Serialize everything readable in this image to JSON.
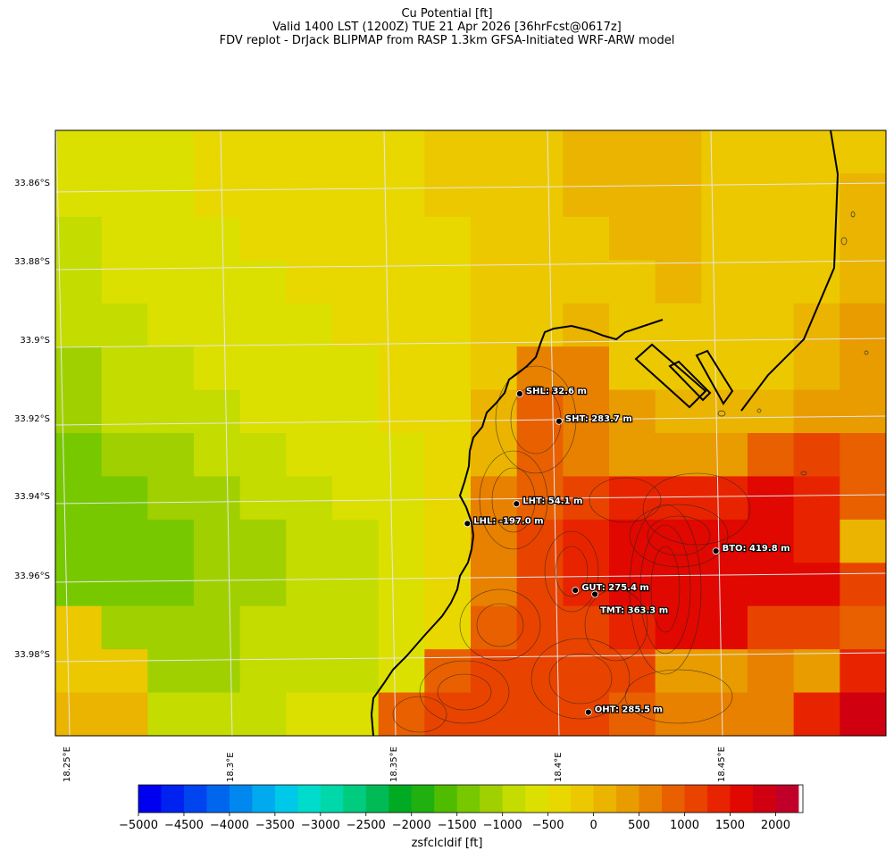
{
  "title": {
    "line1": "Cu Potential [ft]",
    "line2": "Valid 1400 LST (1200Z) TUE 21 Apr 2026 [36hrFcst@0617z]",
    "line3": "FDV replot - DrJack BLIPMAP from RASP 1.3km GFSA-Initiated WRF-ARW model"
  },
  "map": {
    "lat_labels": [
      "33.86°S",
      "33.88°S",
      "33.9°S",
      "33.92°S",
      "33.94°S",
      "33.96°S",
      "33.98°S"
    ],
    "lon_labels": [
      "18.25°E",
      "18.3°E",
      "18.35°E",
      "18.4°E",
      "18.45°E"
    ],
    "lon_range": [
      18.247,
      18.501
    ],
    "lat_range": [
      -33.995,
      -33.841
    ]
  },
  "stations": [
    {
      "code": "SHL",
      "label": "SHL: 32.6 m",
      "lon": 18.389,
      "lat": -33.908
    },
    {
      "code": "SHT",
      "label": "SHT: 283.7 m",
      "lon": 18.401,
      "lat": -33.915
    },
    {
      "code": "LHT",
      "label": "LHT: 54.1 m",
      "lon": 18.388,
      "lat": -33.936
    },
    {
      "code": "LHL",
      "label": "LHL: -197.0 m",
      "lon": 18.373,
      "lat": -33.941
    },
    {
      "code": "BTO",
      "label": "BTO: 419.8 m",
      "lon": 18.449,
      "lat": -33.948
    },
    {
      "code": "GUT",
      "label": "GUT: 275.4 m",
      "lon": 18.406,
      "lat": -33.958
    },
    {
      "code": "TMT",
      "label": "TMT: 363.3 m",
      "lon": 18.412,
      "lat": -33.959
    },
    {
      "code": "OHT",
      "label": "OHT: 285.5 m",
      "lon": 18.41,
      "lat": -33.989
    }
  ],
  "colorbar": {
    "label": "zsfclcldif [ft]",
    "min": -5000,
    "max": 2300,
    "step": 250,
    "tick_labels": [
      "−5000",
      "−4500",
      "−4000",
      "−3500",
      "−3000",
      "−2500",
      "−2000",
      "−1500",
      "−1000",
      "−500",
      "0",
      "500",
      "1000",
      "1500",
      "2000"
    ],
    "tick_values": [
      -5000,
      -4500,
      -4000,
      -3500,
      -3000,
      -2500,
      -2000,
      -1500,
      -1000,
      -500,
      0,
      500,
      1000,
      1500,
      2000
    ],
    "colors": [
      "#0000f0",
      "#0022f0",
      "#0044f0",
      "#0066ee",
      "#0088ee",
      "#00aaee",
      "#00c8e8",
      "#00dccc",
      "#00d8aa",
      "#00cc80",
      "#00bb55",
      "#00aa22",
      "#20b010",
      "#50bc00",
      "#78c800",
      "#a0d000",
      "#c4dc00",
      "#dce000",
      "#e8d800",
      "#ecc800",
      "#eab400",
      "#e89c00",
      "#e88000",
      "#e86000",
      "#e84400",
      "#e82400",
      "#e00800",
      "#d00010",
      "#c00028"
    ]
  },
  "grid_cells": [
    [
      17,
      17,
      17,
      18,
      18,
      18,
      18,
      18,
      19,
      19,
      19,
      20,
      20,
      20,
      19,
      19,
      19,
      19
    ],
    [
      17,
      17,
      17,
      18,
      18,
      18,
      18,
      18,
      19,
      19,
      19,
      20,
      20,
      20,
      19,
      19,
      19,
      20
    ],
    [
      16,
      17,
      17,
      17,
      18,
      18,
      18,
      18,
      18,
      19,
      19,
      19,
      20,
      20,
      19,
      19,
      19,
      20
    ],
    [
      16,
      17,
      17,
      17,
      17,
      18,
      18,
      18,
      18,
      19,
      19,
      19,
      19,
      20,
      19,
      19,
      19,
      20
    ],
    [
      16,
      16,
      17,
      17,
      17,
      17,
      18,
      18,
      18,
      19,
      19,
      20,
      19,
      19,
      19,
      19,
      20,
      21
    ],
    [
      15,
      16,
      16,
      17,
      17,
      17,
      17,
      18,
      18,
      19,
      22,
      22,
      19,
      19,
      19,
      19,
      20,
      21
    ],
    [
      15,
      16,
      16,
      16,
      17,
      17,
      17,
      18,
      18,
      20,
      23,
      22,
      21,
      20,
      20,
      20,
      21,
      21
    ],
    [
      14,
      15,
      15,
      16,
      16,
      17,
      17,
      17,
      18,
      20,
      23,
      22,
      21,
      21,
      21,
      23,
      24,
      23
    ],
    [
      14,
      14,
      15,
      15,
      16,
      16,
      17,
      17,
      18,
      22,
      23,
      24,
      25,
      25,
      25,
      26,
      25,
      23
    ],
    [
      14,
      14,
      14,
      15,
      15,
      16,
      16,
      17,
      18,
      22,
      24,
      25,
      26,
      26,
      26,
      26,
      25,
      20
    ],
    [
      14,
      14,
      14,
      15,
      15,
      16,
      16,
      17,
      18,
      22,
      24,
      25,
      26,
      26,
      26,
      26,
      26,
      24
    ],
    [
      19,
      15,
      15,
      15,
      16,
      16,
      16,
      17,
      18,
      23,
      24,
      24,
      25,
      26,
      26,
      24,
      24,
      23
    ],
    [
      19,
      19,
      15,
      15,
      16,
      16,
      16,
      17,
      23,
      24,
      24,
      24,
      24,
      21,
      21,
      22,
      21,
      25
    ],
    [
      20,
      20,
      16,
      16,
      16,
      17,
      17,
      23,
      24,
      24,
      24,
      24,
      23,
      22,
      22,
      22,
      25,
      27
    ]
  ]
}
